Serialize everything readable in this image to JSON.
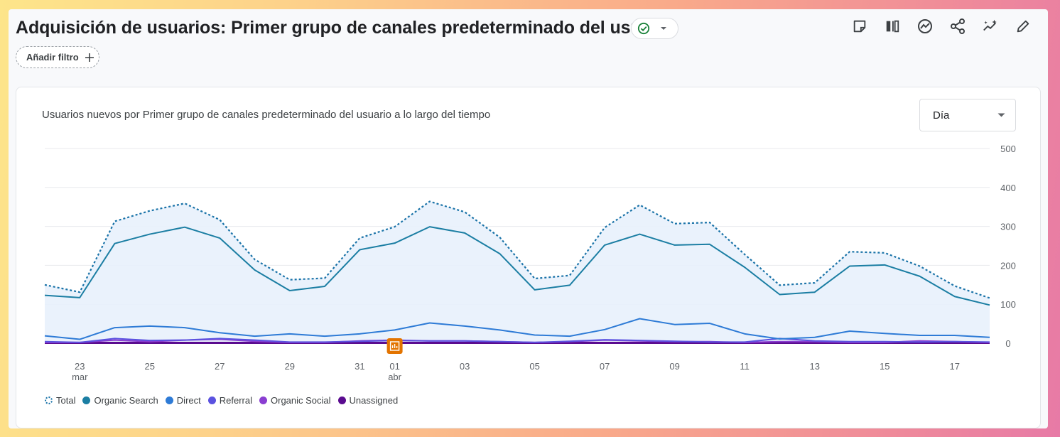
{
  "header": {
    "title": "Adquisición de usuarios: Primer grupo de canales predeterminado del usuario",
    "filter_label": "Añadir filtro"
  },
  "toolbar": {
    "icons": [
      "note-icon",
      "compare-icon",
      "insights-icon",
      "share-icon",
      "sparkle-trend-icon",
      "edit-icon"
    ]
  },
  "card": {
    "period_select": "Día"
  },
  "colors": {
    "total": "#1a73a8",
    "organic_search": "#1b7ea3",
    "direct": "#2e7bd6",
    "referral": "#5b52e0",
    "organic_social": "#8a3ed1",
    "unassigned": "#5a0b8f"
  },
  "chart_data": {
    "type": "line",
    "title": "Usuarios nuevos por Primer grupo de canales predeterminado del usuario a lo largo del tiempo",
    "xlabel": "",
    "ylabel": "",
    "x": [
      "22",
      "23",
      "24",
      "25",
      "26",
      "27",
      "28",
      "29",
      "30",
      "31",
      "01",
      "02",
      "03",
      "04",
      "05",
      "06",
      "07",
      "08",
      "09",
      "10",
      "11",
      "12",
      "13",
      "14",
      "15",
      "16",
      "17",
      "18"
    ],
    "x_ticks": [
      {
        "label": "23",
        "sub": "mar"
      },
      {
        "label": "25",
        "sub": ""
      },
      {
        "label": "27",
        "sub": ""
      },
      {
        "label": "29",
        "sub": ""
      },
      {
        "label": "31",
        "sub": ""
      },
      {
        "label": "01",
        "sub": "abr"
      },
      {
        "label": "03",
        "sub": ""
      },
      {
        "label": "05",
        "sub": ""
      },
      {
        "label": "07",
        "sub": ""
      },
      {
        "label": "09",
        "sub": ""
      },
      {
        "label": "11",
        "sub": ""
      },
      {
        "label": "13",
        "sub": ""
      },
      {
        "label": "15",
        "sub": ""
      },
      {
        "label": "17",
        "sub": ""
      }
    ],
    "y_ticks": [
      "0",
      "100",
      "200",
      "300",
      "400",
      "500"
    ],
    "ylim": [
      0,
      500
    ],
    "grid": true,
    "legend_position": "bottom-left",
    "series": [
      {
        "name": "Total",
        "style": "dotted",
        "values": [
          150,
          131,
          313,
          340,
          359,
          317,
          215,
          163,
          167,
          270,
          299,
          364,
          337,
          272,
          166,
          174,
          297,
          355,
          307,
          310,
          228,
          149,
          155,
          235,
          232,
          198,
          147,
          116
        ]
      },
      {
        "name": "Organic Search",
        "style": "solid",
        "values": [
          123,
          117,
          256,
          280,
          298,
          270,
          188,
          135,
          146,
          240,
          257,
          299,
          283,
          230,
          137,
          149,
          252,
          280,
          252,
          254,
          195,
          125,
          131,
          198,
          201,
          172,
          120,
          98
        ]
      },
      {
        "name": "Direct",
        "style": "solid",
        "values": [
          19,
          10,
          40,
          44,
          40,
          27,
          18,
          24,
          18,
          24,
          34,
          52,
          44,
          34,
          21,
          18,
          35,
          63,
          48,
          51,
          24,
          11,
          15,
          31,
          25,
          20,
          20,
          15
        ]
      },
      {
        "name": "Referral",
        "style": "solid",
        "values": [
          4,
          2,
          12,
          7,
          8,
          12,
          8,
          3,
          3,
          5,
          7,
          6,
          6,
          4,
          2,
          5,
          9,
          7,
          5,
          3,
          3,
          12,
          6,
          4,
          4,
          3,
          4,
          3
        ]
      },
      {
        "name": "Organic Social",
        "style": "solid",
        "values": [
          2,
          2,
          8,
          4,
          8,
          10,
          5,
          2,
          2,
          6,
          8,
          6,
          6,
          4,
          2,
          4,
          8,
          6,
          4,
          4,
          2,
          4,
          4,
          2,
          2,
          6,
          4,
          2
        ]
      },
      {
        "name": "Unassigned",
        "style": "solid",
        "values": [
          1,
          1,
          1,
          1,
          1,
          1,
          1,
          1,
          1,
          1,
          1,
          1,
          1,
          1,
          1,
          1,
          1,
          1,
          1,
          1,
          1,
          1,
          1,
          1,
          1,
          1,
          1,
          1
        ]
      }
    ]
  }
}
